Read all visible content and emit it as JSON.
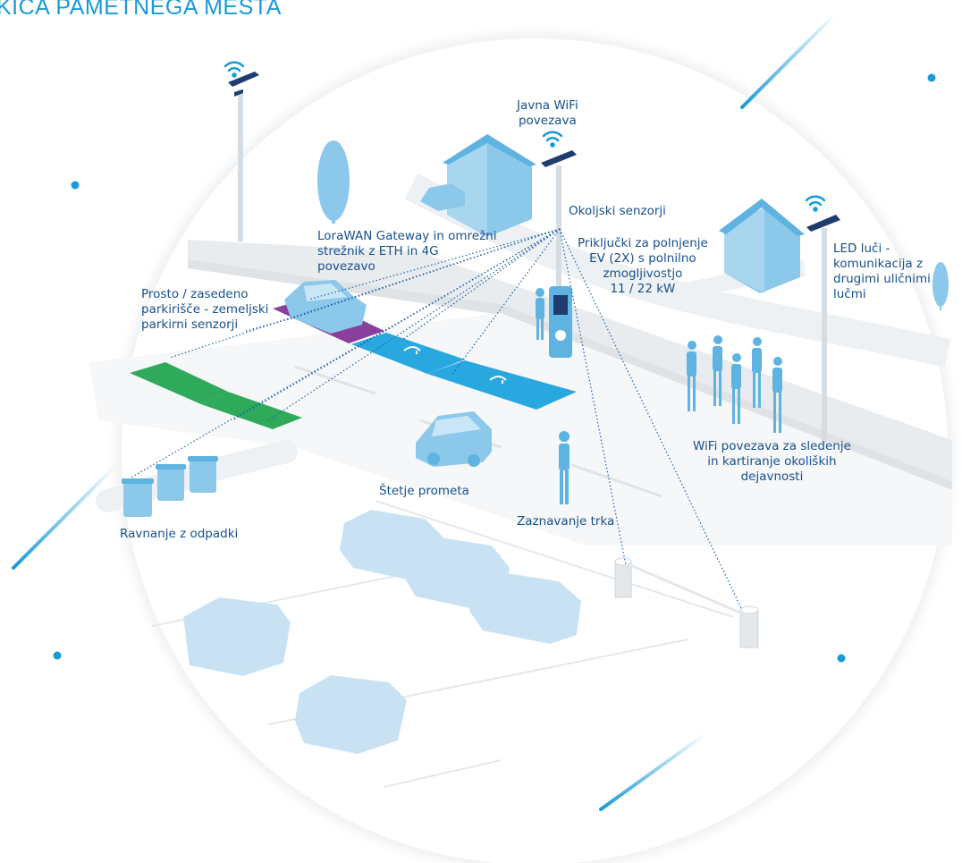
{
  "title": "KICA PAMETNEGA MESTA",
  "labels": {
    "wifi_public_1": "Javna WiFi",
    "wifi_public_2": "povezava",
    "env_sensors": "Okoljski senzorji",
    "gateway_1": "LoraWAN Gateway in omrežni",
    "gateway_2": "strežnik z ETH in 4G",
    "gateway_3": "povezavo",
    "ev_1": "Priključki za polnjenje",
    "ev_2": "EV (2X) s polnilno",
    "ev_3": "zmogljivostjo",
    "ev_4": "11 / 22 kW",
    "led_1": "LED luči -",
    "led_2": "komunikacija z",
    "led_3": "drugimi uličnimi",
    "led_4": "lučmi",
    "parking_1": "Prosto / zasedeno",
    "parking_2": "parkirišče - zemeljski",
    "parking_3": "parkirni senzorji",
    "wifi_track_1": "WiFi povezava za sledenje",
    "wifi_track_2": "in kartiranje okoliških",
    "wifi_track_3": "dejavnosti",
    "traffic": "Štetje prometa",
    "crash": "Zaznavanje trka",
    "waste": "Ravnanje z odpadki"
  },
  "colors": {
    "accent": "#1a9ad6",
    "label": "#17508c",
    "light_blue": "#8cc8ea",
    "ev_bay": "#29a8e0",
    "occupied_bay": "#8a3f9c",
    "free_bay": "#2faa5a",
    "road": "#eef0f2"
  },
  "icons": [
    "wifi-icon",
    "street-lamp-icon",
    "solar-panel-icon",
    "house-icon",
    "tree-icon",
    "car-icon",
    "ev-charger-icon",
    "person-icon",
    "waste-bin-icon",
    "barrier-post-icon"
  ]
}
